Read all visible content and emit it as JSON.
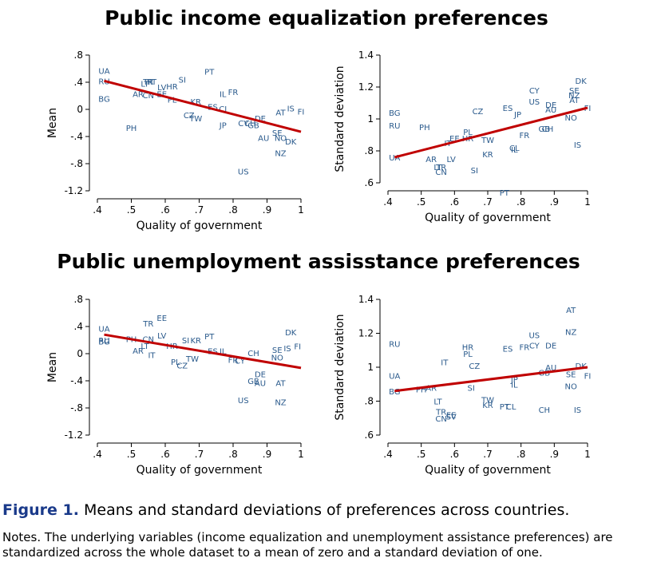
{
  "titles": {
    "top": "Public income equalization preferences",
    "bottom": "Public unemployment assisstance preferences"
  },
  "caption": {
    "label": "Figure 1.",
    "text": "Means and standard deviations of preferences across countries."
  },
  "notes": "Notes. The underlying variables (income equalization and unemployment assistance preferences) are standardized across the whole dataset to a mean of zero and a standard deviation of one.",
  "colors": {
    "points": "#2a5a8c",
    "fit_line": "#c00000"
  },
  "chart_data": [
    {
      "type": "scatter",
      "title": "Public income equalization preferences",
      "xlabel": "Quality of government",
      "ylabel": "Mean",
      "xlim": [
        0.4,
        1.0
      ],
      "ylim": [
        -1.2,
        0.8
      ],
      "xticks": [
        ".4",
        ".5",
        ".6",
        ".7",
        ".8",
        ".9",
        "1"
      ],
      "yticks": [
        ".8",
        ".4",
        "0",
        "-.4",
        "-.8",
        "-1.2"
      ],
      "ytick_values": [
        0.8,
        0.4,
        0.0,
        -0.4,
        -0.8,
        -1.2
      ],
      "fit_line": {
        "x": [
          0.42,
          1.0
        ],
        "y": [
          0.42,
          -0.33
        ]
      },
      "points": [
        {
          "label": "UA",
          "x": 0.42,
          "y": 0.57
        },
        {
          "label": "RU",
          "x": 0.42,
          "y": 0.42
        },
        {
          "label": "BG",
          "x": 0.42,
          "y": 0.16
        },
        {
          "label": "TR",
          "x": 0.55,
          "y": 0.41
        },
        {
          "label": "RT",
          "x": 0.56,
          "y": 0.41
        },
        {
          "label": "LT",
          "x": 0.54,
          "y": 0.38
        },
        {
          "label": "LV",
          "x": 0.59,
          "y": 0.33
        },
        {
          "label": "HR",
          "x": 0.62,
          "y": 0.34
        },
        {
          "label": "SI",
          "x": 0.65,
          "y": 0.44
        },
        {
          "label": "PT",
          "x": 0.73,
          "y": 0.56
        },
        {
          "label": "AR",
          "x": 0.52,
          "y": 0.23
        },
        {
          "label": "CN",
          "x": 0.55,
          "y": 0.21
        },
        {
          "label": "EE",
          "x": 0.59,
          "y": 0.23
        },
        {
          "label": "PL",
          "x": 0.62,
          "y": 0.15
        },
        {
          "label": "KR",
          "x": 0.69,
          "y": 0.12
        },
        {
          "label": "IL",
          "x": 0.77,
          "y": 0.23
        },
        {
          "label": "FR",
          "x": 0.8,
          "y": 0.26
        },
        {
          "label": "ES",
          "x": 0.74,
          "y": 0.04
        },
        {
          "label": "CI",
          "x": 0.77,
          "y": 0.01
        },
        {
          "label": "CZ",
          "x": 0.67,
          "y": -0.08
        },
        {
          "label": "TW",
          "x": 0.69,
          "y": -0.13
        },
        {
          "label": "PH",
          "x": 0.5,
          "y": -0.27
        },
        {
          "label": "JP",
          "x": 0.77,
          "y": -0.23
        },
        {
          "label": "CY",
          "x": 0.83,
          "y": -0.2
        },
        {
          "label": "CH",
          "x": 0.85,
          "y": -0.2
        },
        {
          "label": "GB",
          "x": 0.86,
          "y": -0.23
        },
        {
          "label": "DE",
          "x": 0.88,
          "y": -0.13
        },
        {
          "label": "AT",
          "x": 0.94,
          "y": -0.04
        },
        {
          "label": "IS",
          "x": 0.97,
          "y": 0.02
        },
        {
          "label": "FI",
          "x": 1.0,
          "y": -0.03
        },
        {
          "label": "SE",
          "x": 0.93,
          "y": -0.34
        },
        {
          "label": "AU",
          "x": 0.89,
          "y": -0.42
        },
        {
          "label": "NO",
          "x": 0.94,
          "y": -0.42
        },
        {
          "label": "DK",
          "x": 0.97,
          "y": -0.47
        },
        {
          "label": "NZ",
          "x": 0.94,
          "y": -0.64
        },
        {
          "label": "US",
          "x": 0.83,
          "y": -0.91
        }
      ]
    },
    {
      "type": "scatter",
      "title": "Public income equalization preferences",
      "xlabel": "Quality of government",
      "ylabel": "Standard deviation",
      "xlim": [
        0.4,
        1.0
      ],
      "ylim": [
        0.6,
        1.4
      ],
      "xticks": [
        ".4",
        ".5",
        ".6",
        ".7",
        ".8",
        ".9",
        "1"
      ],
      "yticks": [
        "1.4",
        "1.2",
        "1",
        ".8",
        ".6"
      ],
      "ytick_values": [
        1.4,
        1.2,
        1.0,
        0.8,
        0.6
      ],
      "fit_line": {
        "x": [
          0.42,
          1.0
        ],
        "y": [
          0.76,
          1.07
        ]
      },
      "points": [
        {
          "label": "DK",
          "x": 0.98,
          "y": 1.24
        },
        {
          "label": "CY",
          "x": 0.84,
          "y": 1.18
        },
        {
          "label": "SE",
          "x": 0.96,
          "y": 1.18
        },
        {
          "label": "NZ",
          "x": 0.96,
          "y": 1.15
        },
        {
          "label": "AT",
          "x": 0.96,
          "y": 1.12
        },
        {
          "label": "US",
          "x": 0.84,
          "y": 1.11
        },
        {
          "label": "DE",
          "x": 0.89,
          "y": 1.09
        },
        {
          "label": "AU",
          "x": 0.89,
          "y": 1.06
        },
        {
          "label": "ES",
          "x": 0.76,
          "y": 1.07
        },
        {
          "label": "CZ",
          "x": 0.67,
          "y": 1.05
        },
        {
          "label": "FI",
          "x": 1.0,
          "y": 1.07
        },
        {
          "label": "BG",
          "x": 0.42,
          "y": 1.04
        },
        {
          "label": "JP",
          "x": 0.79,
          "y": 1.03
        },
        {
          "label": "NO",
          "x": 0.95,
          "y": 1.01
        },
        {
          "label": "RU",
          "x": 0.42,
          "y": 0.96
        },
        {
          "label": "PH",
          "x": 0.51,
          "y": 0.95
        },
        {
          "label": "GB",
          "x": 0.87,
          "y": 0.94
        },
        {
          "label": "CH",
          "x": 0.88,
          "y": 0.94
        },
        {
          "label": "PL",
          "x": 0.64,
          "y": 0.92
        },
        {
          "label": "FR",
          "x": 0.81,
          "y": 0.9
        },
        {
          "label": "EE",
          "x": 0.6,
          "y": 0.88
        },
        {
          "label": "HR",
          "x": 0.64,
          "y": 0.88
        },
        {
          "label": "IT",
          "x": 0.58,
          "y": 0.85
        },
        {
          "label": "TW",
          "x": 0.7,
          "y": 0.87
        },
        {
          "label": "CL",
          "x": 0.78,
          "y": 0.82
        },
        {
          "label": "IL",
          "x": 0.78,
          "y": 0.81
        },
        {
          "label": "IS",
          "x": 0.97,
          "y": 0.84
        },
        {
          "label": "KR",
          "x": 0.7,
          "y": 0.78
        },
        {
          "label": "UA",
          "x": 0.42,
          "y": 0.76
        },
        {
          "label": "AR",
          "x": 0.53,
          "y": 0.75
        },
        {
          "label": "LV",
          "x": 0.59,
          "y": 0.75
        },
        {
          "label": "LT",
          "x": 0.55,
          "y": 0.7
        },
        {
          "label": "TR",
          "x": 0.56,
          "y": 0.7
        },
        {
          "label": "CN",
          "x": 0.56,
          "y": 0.67
        },
        {
          "label": "SI",
          "x": 0.66,
          "y": 0.68
        },
        {
          "label": "PT",
          "x": 0.75,
          "y": 0.54
        }
      ]
    },
    {
      "type": "scatter",
      "title": "Public unemployment assisstance preferences",
      "xlabel": "Quality of government",
      "ylabel": "Mean",
      "xlim": [
        0.4,
        1.0
      ],
      "ylim": [
        -1.2,
        0.8
      ],
      "xticks": [
        ".4",
        ".5",
        ".6",
        ".7",
        ".8",
        ".9",
        "1"
      ],
      "yticks": [
        ".8",
        ".4",
        "0",
        "-.4",
        "-.8",
        "-1.2"
      ],
      "ytick_values": [
        0.8,
        0.4,
        0.0,
        -0.4,
        -0.8,
        -1.2
      ],
      "fit_line": {
        "x": [
          0.42,
          1.0
        ],
        "y": [
          0.28,
          -0.21
        ]
      },
      "points": [
        {
          "label": "EE",
          "x": 0.59,
          "y": 0.53
        },
        {
          "label": "TR",
          "x": 0.55,
          "y": 0.45
        },
        {
          "label": "UA",
          "x": 0.42,
          "y": 0.37
        },
        {
          "label": "DK",
          "x": 0.97,
          "y": 0.32
        },
        {
          "label": "LV",
          "x": 0.59,
          "y": 0.27
        },
        {
          "label": "PT",
          "x": 0.73,
          "y": 0.26
        },
        {
          "label": "RU",
          "x": 0.42,
          "y": 0.2
        },
        {
          "label": "BG",
          "x": 0.42,
          "y": 0.18
        },
        {
          "label": "PH",
          "x": 0.5,
          "y": 0.22
        },
        {
          "label": "CN",
          "x": 0.55,
          "y": 0.22
        },
        {
          "label": "SI",
          "x": 0.66,
          "y": 0.2
        },
        {
          "label": "KR",
          "x": 0.69,
          "y": 0.2
        },
        {
          "label": "LT",
          "x": 0.54,
          "y": 0.12
        },
        {
          "label": "HR",
          "x": 0.62,
          "y": 0.12
        },
        {
          "label": "IS",
          "x": 0.96,
          "y": 0.08
        },
        {
          "label": "FI",
          "x": 0.99,
          "y": 0.11
        },
        {
          "label": "SE",
          "x": 0.93,
          "y": 0.06
        },
        {
          "label": "AR",
          "x": 0.52,
          "y": 0.05
        },
        {
          "label": "ES",
          "x": 0.74,
          "y": 0.04
        },
        {
          "label": "IL",
          "x": 0.77,
          "y": 0.04
        },
        {
          "label": "CH",
          "x": 0.86,
          "y": 0.01
        },
        {
          "label": "IT",
          "x": 0.56,
          "y": -0.02
        },
        {
          "label": "NO",
          "x": 0.93,
          "y": -0.05
        },
        {
          "label": "TW",
          "x": 0.68,
          "y": -0.07
        },
        {
          "label": "FR",
          "x": 0.8,
          "y": -0.09
        },
        {
          "label": "CY",
          "x": 0.82,
          "y": -0.1
        },
        {
          "label": "PL",
          "x": 0.63,
          "y": -0.12
        },
        {
          "label": "CZ",
          "x": 0.65,
          "y": -0.17
        },
        {
          "label": "DE",
          "x": 0.88,
          "y": -0.3
        },
        {
          "label": "GB",
          "x": 0.86,
          "y": -0.4
        },
        {
          "label": "AU",
          "x": 0.88,
          "y": -0.43
        },
        {
          "label": "AT",
          "x": 0.94,
          "y": -0.43
        },
        {
          "label": "US",
          "x": 0.83,
          "y": -0.68
        },
        {
          "label": "NZ",
          "x": 0.94,
          "y": -0.71
        }
      ]
    },
    {
      "type": "scatter",
      "title": "Public unemployment assisstance preferences",
      "xlabel": "Quality of government",
      "ylabel": "Standard deviation",
      "xlim": [
        0.4,
        1.0
      ],
      "ylim": [
        0.6,
        1.4
      ],
      "xticks": [
        ".4",
        ".5",
        ".6",
        ".7",
        ".8",
        ".9",
        "1"
      ],
      "yticks": [
        "1.4",
        "1.2",
        "1",
        ".8",
        ".6"
      ],
      "ytick_values": [
        1.4,
        1.2,
        1.0,
        0.8,
        0.6
      ],
      "fit_line": {
        "x": [
          0.42,
          1.0
        ],
        "y": [
          0.86,
          1.0
        ]
      },
      "points": [
        {
          "label": "AT",
          "x": 0.95,
          "y": 1.34
        },
        {
          "label": "NZ",
          "x": 0.95,
          "y": 1.21
        },
        {
          "label": "US",
          "x": 0.84,
          "y": 1.19
        },
        {
          "label": "RU",
          "x": 0.42,
          "y": 1.14
        },
        {
          "label": "CY",
          "x": 0.84,
          "y": 1.13
        },
        {
          "label": "DE",
          "x": 0.89,
          "y": 1.13
        },
        {
          "label": "HR",
          "x": 0.64,
          "y": 1.12
        },
        {
          "label": "FR",
          "x": 0.81,
          "y": 1.12
        },
        {
          "label": "ES",
          "x": 0.76,
          "y": 1.11
        },
        {
          "label": "PL",
          "x": 0.64,
          "y": 1.08
        },
        {
          "label": "IT",
          "x": 0.57,
          "y": 1.03
        },
        {
          "label": "CZ",
          "x": 0.66,
          "y": 1.01
        },
        {
          "label": "AU",
          "x": 0.89,
          "y": 1.0
        },
        {
          "label": "DK",
          "x": 0.98,
          "y": 1.01
        },
        {
          "label": "GB",
          "x": 0.87,
          "y": 0.97
        },
        {
          "label": "SE",
          "x": 0.95,
          "y": 0.96
        },
        {
          "label": "UA",
          "x": 0.42,
          "y": 0.95
        },
        {
          "label": "FI",
          "x": 1.0,
          "y": 0.95
        },
        {
          "label": "JP",
          "x": 0.78,
          "y": 0.93
        },
        {
          "label": "IL",
          "x": 0.78,
          "y": 0.9
        },
        {
          "label": "NO",
          "x": 0.95,
          "y": 0.89
        },
        {
          "label": "SI",
          "x": 0.65,
          "y": 0.88
        },
        {
          "label": "PH",
          "x": 0.5,
          "y": 0.87
        },
        {
          "label": "AR",
          "x": 0.53,
          "y": 0.88
        },
        {
          "label": "BG",
          "x": 0.42,
          "y": 0.86
        },
        {
          "label": "TW",
          "x": 0.7,
          "y": 0.81
        },
        {
          "label": "LT",
          "x": 0.55,
          "y": 0.8
        },
        {
          "label": "KR",
          "x": 0.7,
          "y": 0.78
        },
        {
          "label": "PT",
          "x": 0.75,
          "y": 0.77
        },
        {
          "label": "CL",
          "x": 0.77,
          "y": 0.77
        },
        {
          "label": "CH",
          "x": 0.87,
          "y": 0.75
        },
        {
          "label": "IS",
          "x": 0.97,
          "y": 0.75
        },
        {
          "label": "TR",
          "x": 0.56,
          "y": 0.74
        },
        {
          "label": "EE",
          "x": 0.59,
          "y": 0.72
        },
        {
          "label": "SV",
          "x": 0.59,
          "y": 0.71
        },
        {
          "label": "CN",
          "x": 0.56,
          "y": 0.7
        }
      ]
    }
  ]
}
